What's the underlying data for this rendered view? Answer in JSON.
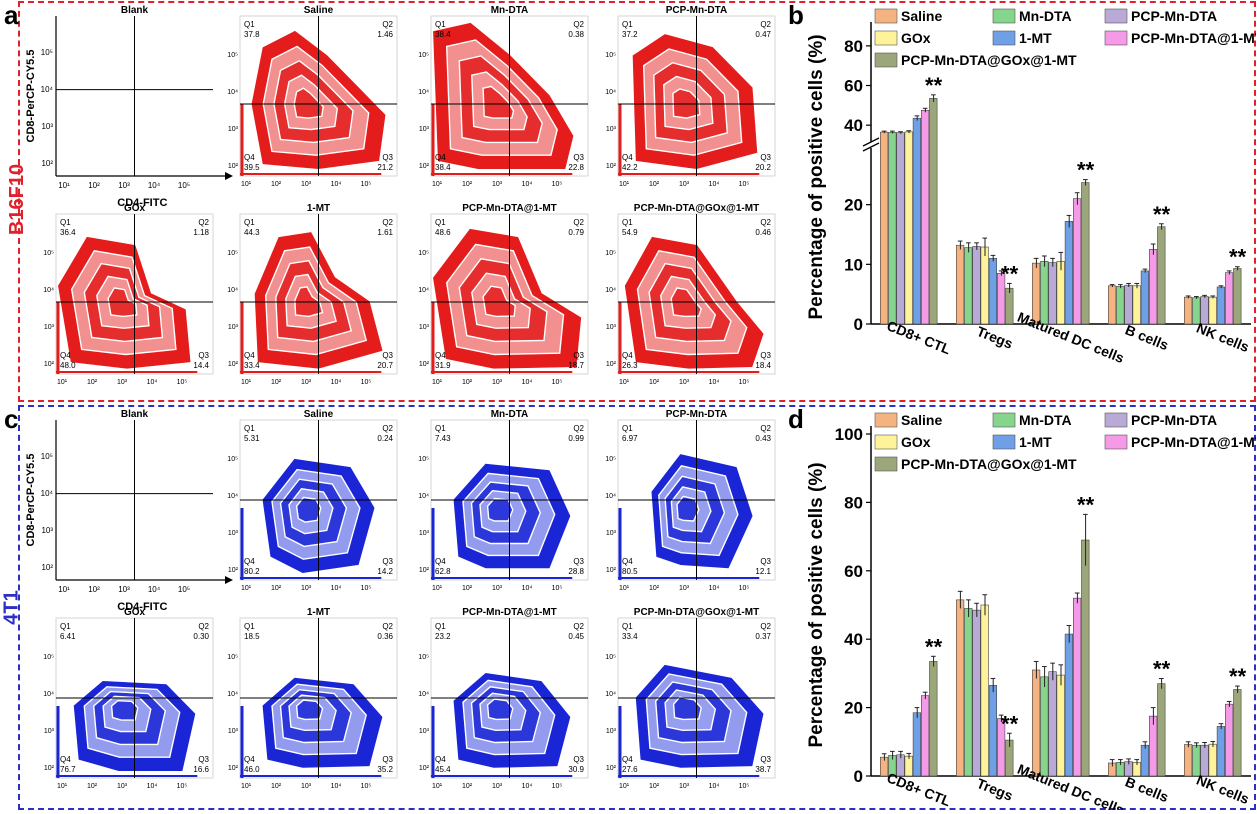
{
  "side_labels": {
    "top": "B16F10",
    "bottom": "4T1",
    "top_color": "#e0202a",
    "bottom_color": "#2b2fc8"
  },
  "panel_letters": {
    "a": "a",
    "b": "b",
    "c": "c",
    "d": "d"
  },
  "flow": {
    "x_axis_label": "CD4-FITC",
    "y_axis_label": "CD8-PerCP-CY5.5",
    "quadrant_labels": [
      "Q1",
      "Q2",
      "Q3",
      "Q4"
    ],
    "tick_labels": [
      "10⁰",
      "10¹",
      "10²",
      "10³",
      "10⁴",
      "10⁵"
    ],
    "b16f10": {
      "color": "#e41c1c",
      "plots": [
        {
          "title": "Blank",
          "q1": "",
          "q2": "",
          "q3": "",
          "q4": ""
        },
        {
          "title": "Saline",
          "q1": "37.8",
          "q2": "1.46",
          "q3": "21.2",
          "q4": "39.5"
        },
        {
          "title": "Mn-DTA",
          "q1": "38.4",
          "q2": "0.38",
          "q3": "22.8",
          "q4": "38.4"
        },
        {
          "title": "PCP-Mn-DTA",
          "q1": "37.2",
          "q2": "0.47",
          "q3": "20.2",
          "q4": "42.2"
        },
        {
          "title": "GOx",
          "q1": "36.4",
          "q2": "1.18",
          "q3": "14.4",
          "q4": "48.0"
        },
        {
          "title": "1-MT",
          "q1": "44.3",
          "q2": "1.61",
          "q3": "20.7",
          "q4": "33.4"
        },
        {
          "title": "PCP-Mn-DTA@1-MT",
          "q1": "48.6",
          "q2": "0.79",
          "q3": "18.7",
          "q4": "31.9"
        },
        {
          "title": "PCP-Mn-DTA@GOx@1-MT",
          "q1": "54.9",
          "q2": "0.46",
          "q3": "18.4",
          "q4": "26.3"
        }
      ]
    },
    "t41": {
      "color": "#1a26d6",
      "plots": [
        {
          "title": "Blank",
          "q1": "",
          "q2": "",
          "q3": "",
          "q4": ""
        },
        {
          "title": "Saline",
          "q1": "5.31",
          "q2": "0.24",
          "q3": "14.2",
          "q4": "80.2"
        },
        {
          "title": "Mn-DTA",
          "q1": "7.43",
          "q2": "0.99",
          "q3": "28.8",
          "q4": "62.8"
        },
        {
          "title": "PCP-Mn-DTA",
          "q1": "6.97",
          "q2": "0.43",
          "q3": "12.1",
          "q4": "80.5"
        },
        {
          "title": "GOx",
          "q1": "6.41",
          "q2": "0.30",
          "q3": "16.6",
          "q4": "76.7"
        },
        {
          "title": "1-MT",
          "q1": "18.5",
          "q2": "0.36",
          "q3": "35.2",
          "q4": "46.0"
        },
        {
          "title": "PCP-Mn-DTA@1-MT",
          "q1": "23.2",
          "q2": "0.45",
          "q3": "30.9",
          "q4": "45.4"
        },
        {
          "title": "PCP-Mn-DTA@GOx@1-MT",
          "q1": "33.4",
          "q2": "0.37",
          "q3": "38.7",
          "q4": "27.6"
        }
      ]
    }
  },
  "chart_data": [
    {
      "type": "bar",
      "panel": "b",
      "ylabel": "Percentage of positive cells (%)",
      "categories": [
        "CD8+ CTL",
        "Tregs",
        "Matured DC cells",
        "B cells",
        "NK cells"
      ],
      "axis_break": {
        "lower": [
          0,
          30
        ],
        "upper": [
          30,
          88
        ]
      },
      "lower_ticks": [
        0,
        10,
        20
      ],
      "upper_ticks": [
        40,
        60,
        80
      ],
      "series": [
        {
          "name": "Saline",
          "color": "#f6b382",
          "values": [
            36.5,
            13.2,
            10.2,
            6.4,
            4.5
          ],
          "errors": [
            0.5,
            0.7,
            0.8,
            0.2,
            0.2
          ]
        },
        {
          "name": "Mn-DTA",
          "color": "#86d58c",
          "values": [
            36.4,
            12.8,
            10.5,
            6.3,
            4.4
          ],
          "errors": [
            0.6,
            0.8,
            0.9,
            0.3,
            0.2
          ]
        },
        {
          "name": "PCP-Mn-DTA",
          "color": "#b9a9d6",
          "values": [
            36.2,
            13.0,
            10.3,
            6.5,
            4.6
          ],
          "errors": [
            0.5,
            0.6,
            0.7,
            0.3,
            0.2
          ]
        },
        {
          "name": "GOx",
          "color": "#fef39a",
          "values": [
            36.6,
            12.9,
            10.5,
            6.4,
            4.5
          ],
          "errors": [
            0.6,
            1.5,
            1.5,
            0.4,
            0.2
          ]
        },
        {
          "name": "1-MT",
          "color": "#6f9fe6",
          "values": [
            43.5,
            11.0,
            17.2,
            8.9,
            6.2
          ],
          "errors": [
            1.2,
            0.5,
            1.0,
            0.3,
            0.2
          ]
        },
        {
          "name": "PCP-Mn-DTA@1-MT",
          "color": "#f49ae6",
          "values": [
            47.5,
            8.5,
            21.0,
            12.5,
            8.6
          ],
          "errors": [
            1.0,
            0.4,
            1.0,
            0.9,
            0.3
          ]
        },
        {
          "name": "PCP-Mn-DTA@GOx@1-MT",
          "color": "#9ba77a",
          "values": [
            53.5,
            6.0,
            23.7,
            16.3,
            9.3
          ],
          "errors": [
            1.8,
            0.8,
            0.5,
            0.5,
            0.3
          ]
        }
      ],
      "significance": {
        "label": "**",
        "series_index": 6
      }
    },
    {
      "type": "bar",
      "panel": "d",
      "ylabel": "Percentage of positive cells (%)",
      "categories": [
        "CD8+ CTL",
        "Tregs",
        "Matured DC cells",
        "B cells",
        "NK cells"
      ],
      "ylim": [
        0,
        100
      ],
      "ticks": [
        0,
        20,
        40,
        60,
        80,
        100
      ],
      "series": [
        {
          "name": "Saline",
          "color": "#f6b382",
          "values": [
            5.5,
            51.5,
            31.0,
            3.8,
            9.2
          ],
          "errors": [
            1.0,
            2.5,
            2.5,
            1.0,
            0.8
          ]
        },
        {
          "name": "Mn-DTA",
          "color": "#86d58c",
          "values": [
            6.0,
            49.0,
            29.0,
            4.0,
            9.0
          ],
          "errors": [
            1.2,
            2.5,
            3.0,
            0.8,
            0.7
          ]
        },
        {
          "name": "PCP-Mn-DTA",
          "color": "#b9a9d6",
          "values": [
            6.2,
            48.5,
            30.5,
            4.2,
            9.0
          ],
          "errors": [
            1.0,
            2.0,
            2.5,
            0.8,
            0.8
          ]
        },
        {
          "name": "GOx",
          "color": "#fef39a",
          "values": [
            5.8,
            50.0,
            29.5,
            4.0,
            9.3
          ],
          "errors": [
            0.8,
            3.0,
            3.0,
            0.8,
            0.8
          ]
        },
        {
          "name": "1-MT",
          "color": "#6f9fe6",
          "values": [
            18.5,
            26.5,
            41.5,
            9.0,
            14.5
          ],
          "errors": [
            1.5,
            2.0,
            2.5,
            1.0,
            0.8
          ]
        },
        {
          "name": "PCP-Mn-DTA@1-MT",
          "color": "#f49ae6",
          "values": [
            23.5,
            16.8,
            52.0,
            17.5,
            21.0
          ],
          "errors": [
            1.0,
            1.0,
            1.5,
            2.5,
            0.8
          ]
        },
        {
          "name": "PCP-Mn-DTA@GOx@1-MT",
          "color": "#9ba77a",
          "values": [
            33.5,
            10.5,
            69.0,
            27.0,
            25.3
          ],
          "errors": [
            1.5,
            2.0,
            7.5,
            1.5,
            1.0
          ]
        }
      ],
      "significance": {
        "label": "**",
        "series_index": 6
      }
    }
  ]
}
